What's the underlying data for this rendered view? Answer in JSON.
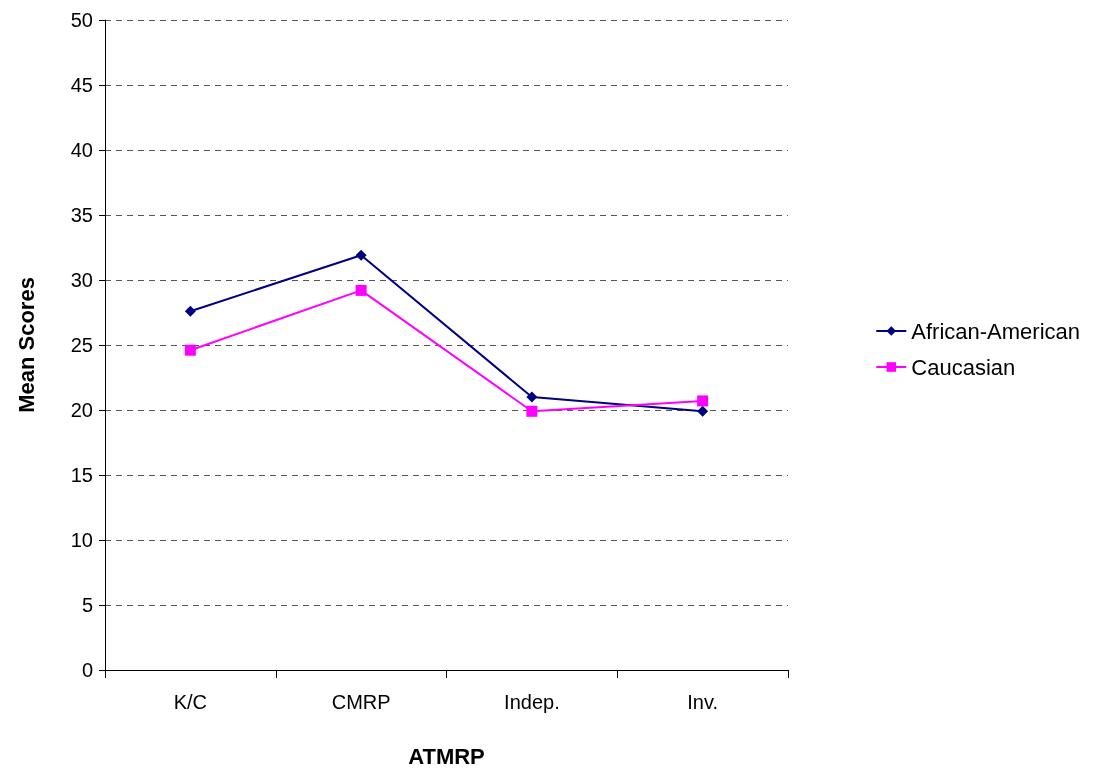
{
  "chart_data": {
    "type": "line",
    "xlabel": "ATMRP",
    "ylabel": "Mean Scores",
    "categories": [
      "K/C",
      "CMRP",
      "Indep.",
      "Inv."
    ],
    "series": [
      {
        "name": "African-American",
        "color": "#000080",
        "values": [
          27.6,
          31.9,
          21.0,
          19.9
        ],
        "marker": "diamond"
      },
      {
        "name": "Caucasian",
        "color": "#ff00ff",
        "values": [
          24.6,
          29.2,
          19.9,
          20.7
        ],
        "marker": "square"
      }
    ],
    "ylim": [
      0,
      50
    ],
    "yticks": [
      0,
      5,
      10,
      15,
      20,
      25,
      30,
      35,
      40,
      45,
      50
    ],
    "grid": "y",
    "legend": "right",
    "line_style": "solid"
  }
}
